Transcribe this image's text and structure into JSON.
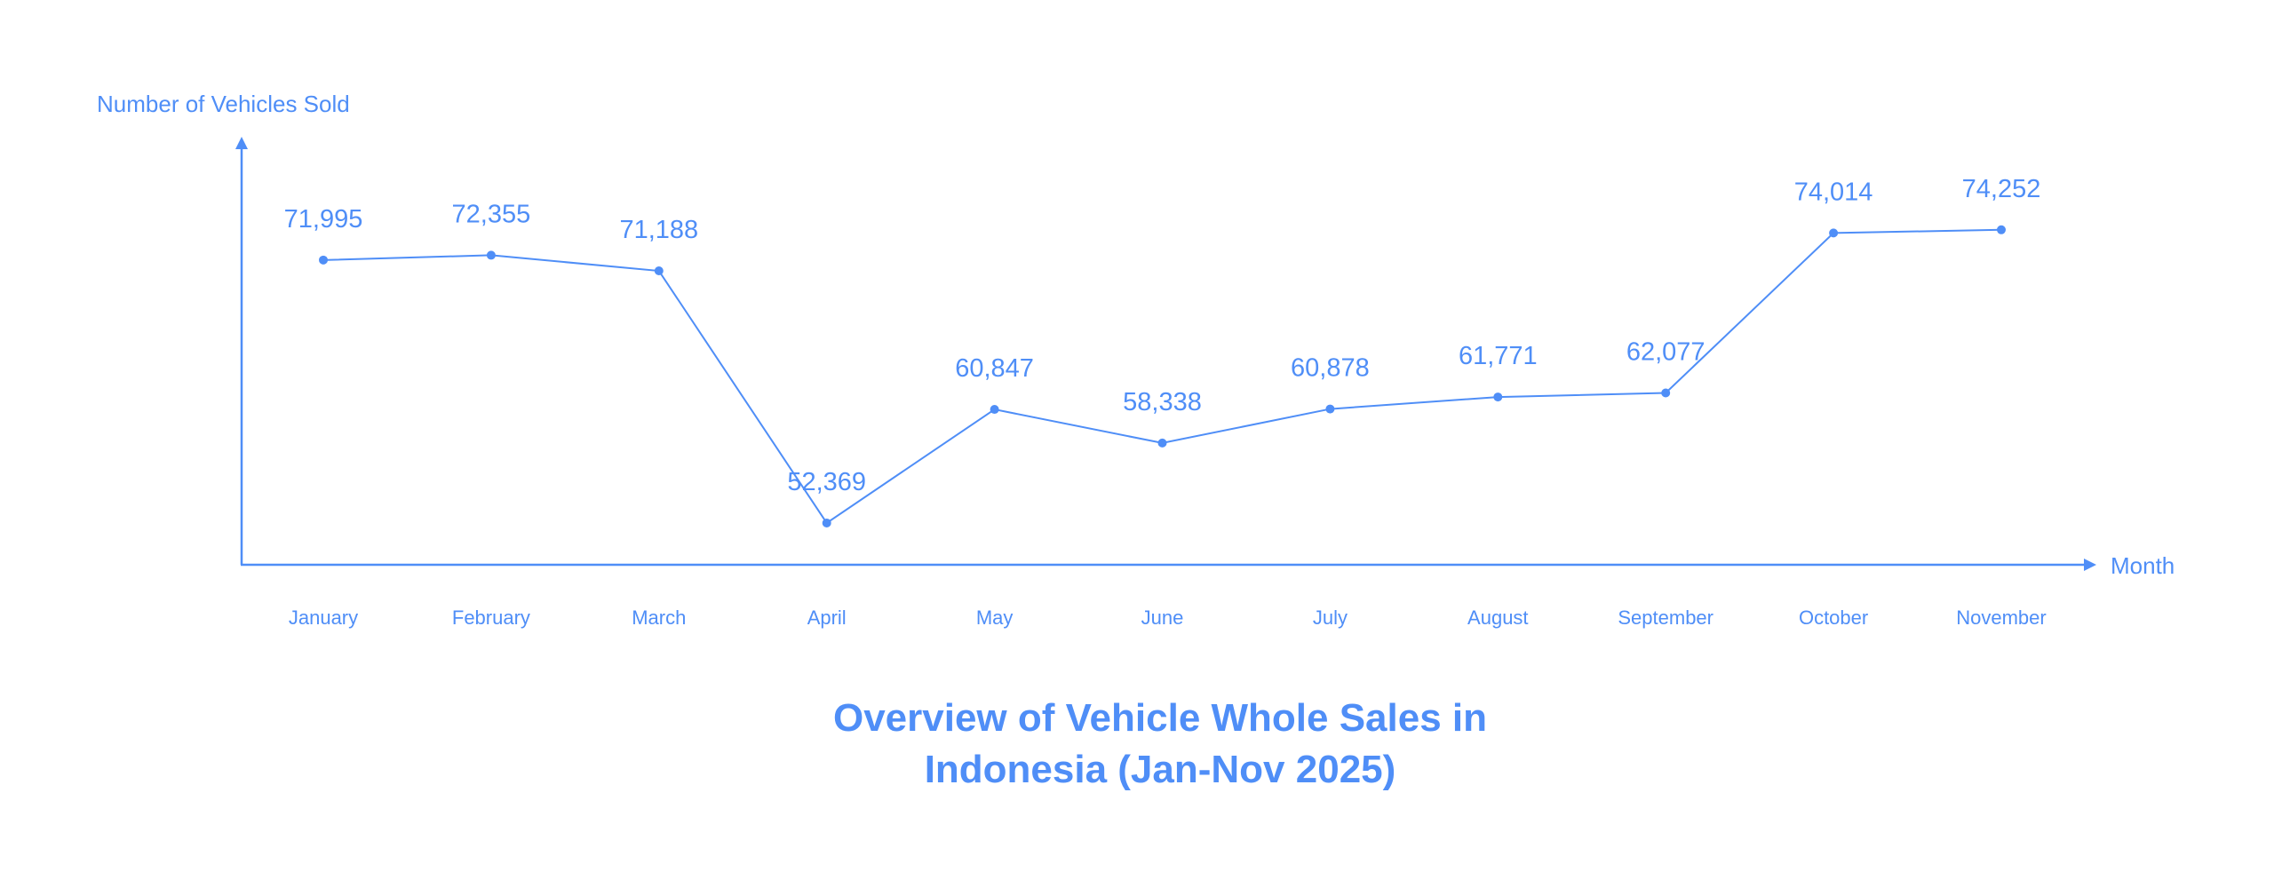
{
  "chart_data": {
    "type": "line",
    "title_lines": [
      "Overview of Vehicle Whole Sales in",
      "Indonesia (Jan-Nov 2025)"
    ],
    "xlabel": "Month",
    "ylabel": "Number of Vehicles Sold",
    "categories": [
      "January",
      "February",
      "March",
      "April",
      "May",
      "June",
      "July",
      "August",
      "September",
      "October",
      "November"
    ],
    "values": [
      71995,
      72355,
      71188,
      52369,
      60847,
      58338,
      60878,
      61771,
      62077,
      74014,
      74252
    ],
    "value_labels": [
      "71,995",
      "72,355",
      "71,188",
      "52,369",
      "60,847",
      "58,338",
      "60,878",
      "61,771",
      "62,077",
      "74,014",
      "74,252"
    ],
    "ylim": [
      49250,
      80800
    ],
    "grid": false,
    "legend": "none",
    "color": "#4f8ef7"
  }
}
